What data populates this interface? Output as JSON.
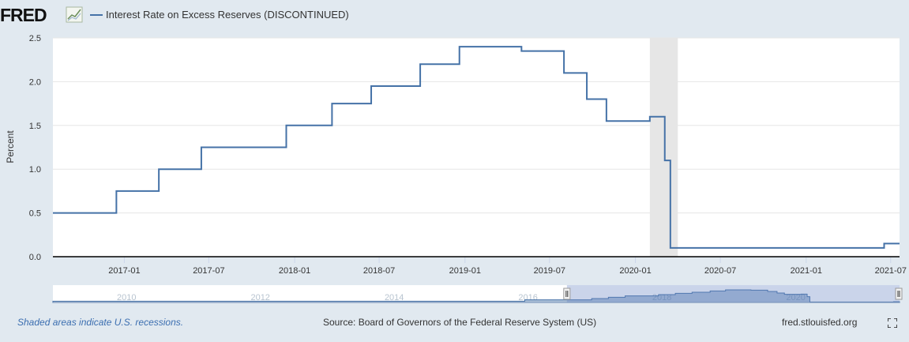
{
  "header": {
    "logo_text": "FRED",
    "legend_label": "Interest Rate on Excess Reserves (DISCONTINUED)"
  },
  "chart_data": {
    "type": "line",
    "step": true,
    "title": "",
    "xlabel": "",
    "ylabel": "Percent",
    "ylim": [
      0,
      2.5
    ],
    "xlim": [
      "2016-08-01",
      "2021-07-20"
    ],
    "yticks": [
      "0.0",
      "0.5",
      "1.0",
      "1.5",
      "2.0",
      "2.5"
    ],
    "xticks": [
      "2017-01",
      "2017-07",
      "2018-01",
      "2018-07",
      "2019-01",
      "2019-07",
      "2020-01",
      "2020-07",
      "2021-01",
      "2021-07"
    ],
    "grid": true,
    "legend_position": "top-left",
    "series_color": "#4572a7",
    "series": [
      {
        "name": "Interest Rate on Excess Reserves (DISCONTINUED)",
        "x": [
          "2016-08-01",
          "2016-12-15",
          "2017-03-16",
          "2017-06-15",
          "2017-12-14",
          "2018-03-22",
          "2018-06-14",
          "2018-09-27",
          "2018-12-20",
          "2019-05-02",
          "2019-08-01",
          "2019-09-19",
          "2019-10-31",
          "2020-02-01",
          "2020-03-04",
          "2020-03-16",
          "2021-06-17",
          "2021-07-20"
        ],
        "values": [
          0.5,
          0.75,
          1.0,
          1.25,
          1.5,
          1.75,
          1.95,
          2.2,
          2.4,
          2.35,
          2.1,
          1.8,
          1.55,
          1.6,
          1.1,
          0.1,
          0.15,
          0.15
        ]
      }
    ],
    "recession": {
      "start": "2020-02-01",
      "end": "2020-04-01"
    }
  },
  "navigator": {
    "labels": [
      "2010",
      "2012",
      "2014",
      "2016",
      "2018",
      "2020"
    ],
    "label_years": [
      2010,
      2012,
      2014,
      2016,
      2018,
      2020
    ],
    "range": [
      2008.9,
      2021.55
    ],
    "selected": [
      2016.58,
      2021.55
    ],
    "series": {
      "x": [
        2008.9,
        2008.97,
        2009.2,
        2015.95,
        2016.95,
        2017.2,
        2017.45,
        2017.95,
        2018.2,
        2018.45,
        2018.72,
        2018.95,
        2019.33,
        2019.58,
        2019.72,
        2019.83,
        2020.08,
        2020.17,
        2020.21,
        2021.46
      ],
      "y": [
        0.25,
        0.25,
        0.25,
        0.5,
        0.75,
        1.0,
        1.25,
        1.5,
        1.75,
        1.95,
        2.2,
        2.4,
        2.35,
        2.1,
        1.8,
        1.55,
        1.6,
        1.1,
        0.1,
        0.15
      ]
    }
  },
  "footer": {
    "recession_note": "Shaded areas indicate U.S. recessions.",
    "source": "Source: Board of Governors of the Federal Reserve System (US)",
    "url": "fred.stlouisfed.org"
  }
}
